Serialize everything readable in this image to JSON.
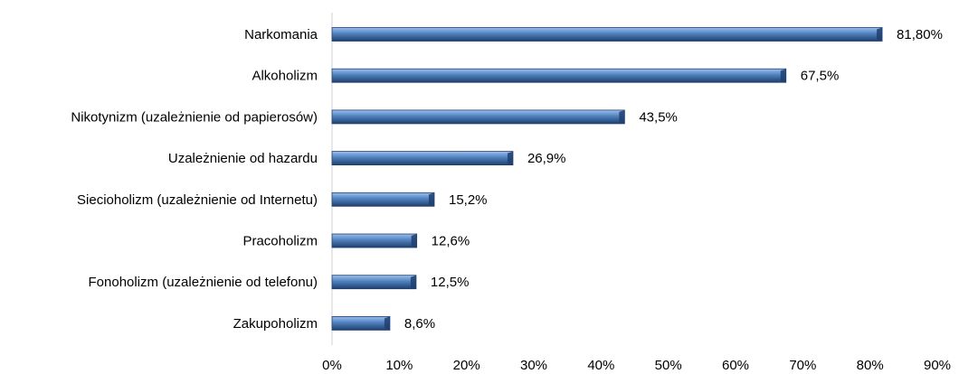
{
  "chart_data": {
    "type": "bar",
    "orientation": "horizontal",
    "categories": [
      "Narkomania",
      "Alkoholizm",
      "Nikotynizm (uzależnienie od papierosów)",
      "Uzależnienie od hazardu",
      "Siecioholizm (uzależnienie od Internetu)",
      "Pracoholizm",
      "Fonoholizm (uzależnienie od telefonu)",
      "Zakupoholizm"
    ],
    "values": [
      81.8,
      67.5,
      43.5,
      26.9,
      15.2,
      12.6,
      12.5,
      8.6
    ],
    "value_labels": [
      "81,80%",
      "67,5%",
      "43,5%",
      "26,9%",
      "15,2%",
      "12,6%",
      "12,5%",
      "8,6%"
    ],
    "xlim": [
      0,
      90
    ],
    "x_ticks": [
      0,
      10,
      20,
      30,
      40,
      50,
      60,
      70,
      80,
      90
    ],
    "x_tick_labels": [
      "0%",
      "10%",
      "20%",
      "30%",
      "40%",
      "50%",
      "60%",
      "70%",
      "80%",
      "90%"
    ],
    "grid": false,
    "legend": "none",
    "bar_color": "#4f81bd",
    "bar_highlight_color": "#9cc0ee",
    "bar_dark_color": "#1f3f6e"
  }
}
